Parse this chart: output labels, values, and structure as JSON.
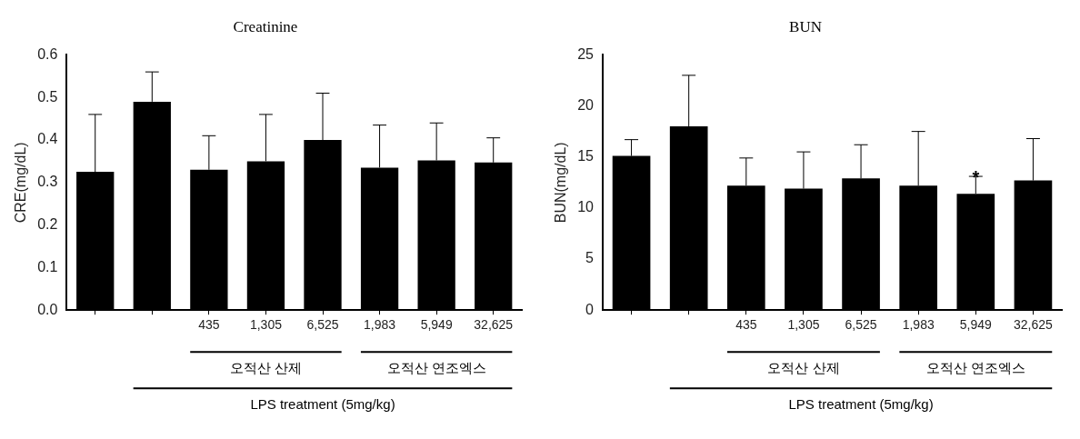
{
  "chart_data": [
    {
      "type": "bar",
      "title": "Creatinine",
      "ylabel": "CRE(mg/dL)",
      "categories": [
        null,
        null,
        "435",
        "1,305",
        "6,525",
        "1,983",
        "5,949",
        "32,625"
      ],
      "values": [
        0.325,
        0.49,
        0.33,
        0.35,
        0.4,
        0.335,
        0.352,
        0.347
      ],
      "errors": [
        [
          0.325,
          0.46
        ],
        [
          0.49,
          0.56
        ],
        [
          0.33,
          0.41
        ],
        [
          0.35,
          0.46
        ],
        [
          0.4,
          0.51
        ],
        [
          0.335,
          0.435
        ],
        [
          0.352,
          0.44
        ],
        [
          0.347,
          0.405
        ]
      ],
      "color": "#000000",
      "ylim": [
        0,
        0.6
      ],
      "yticks": [
        {
          "value": 0,
          "label": "0.0"
        },
        0.1,
        0.2,
        0.3,
        0.4,
        0.5,
        0.6
      ],
      "grid": false,
      "legend": false,
      "annotations": [
        "오적산 산제",
        "오적산 연조엑스",
        "LPS treatment (5mg/kg)"
      ]
    },
    {
      "type": "bar",
      "title": "BUN",
      "ylabel": "BUN(mg/dL)",
      "categories": [
        null,
        null,
        "435",
        "1,305",
        "6,525",
        "1,983",
        "5,949",
        "32,625"
      ],
      "values": [
        15.1,
        18.0,
        12.2,
        11.9,
        12.9,
        12.2,
        11.4,
        12.7
      ],
      "errors": [
        [
          15.1,
          16.7
        ],
        [
          18.0,
          23.0
        ],
        [
          12.2,
          14.9
        ],
        [
          11.9,
          15.5
        ],
        [
          12.9,
          16.2
        ],
        [
          12.2,
          17.5
        ],
        [
          11.4,
          13.1
        ],
        [
          12.7,
          16.8
        ]
      ],
      "color": "#000000",
      "ylim": [
        0,
        25
      ],
      "yticks": [
        0,
        5,
        10,
        15,
        20,
        25
      ],
      "grid": false,
      "legend": false,
      "annotations": [
        "오적산 산제",
        "오적산 연조엑스",
        "LPS treatment (5mg/kg)",
        {
          "text": "*",
          "x": "5,949",
          "y": 13.1
        }
      ]
    }
  ]
}
